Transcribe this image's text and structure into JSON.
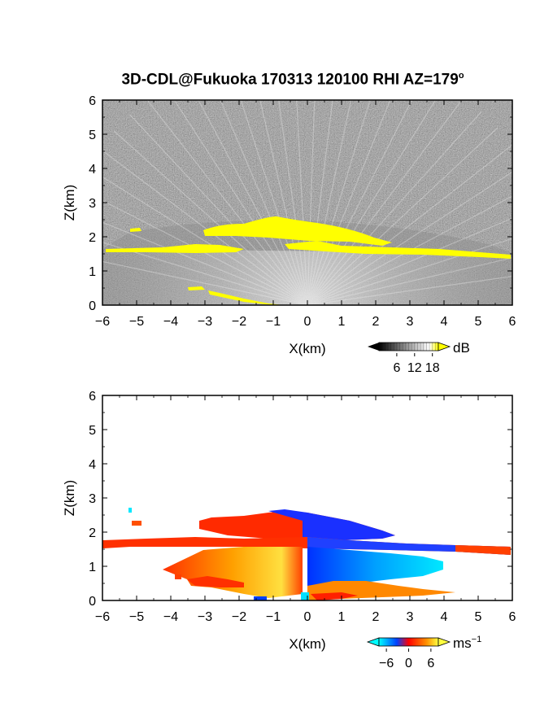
{
  "figure": {
    "title_main": "3D-CDL@Fukuoka 170313 120100 RHI AZ=179",
    "title_degree": "o"
  },
  "chart_data": [
    {
      "type": "heatmap",
      "name": "backscatter-intensity",
      "xlabel": "X(km)",
      "ylabel": "Z(km)",
      "xlim": [
        -6,
        6
      ],
      "ylim": [
        0,
        6
      ],
      "x_ticks": [
        -6,
        -5,
        -4,
        -3,
        -2,
        -1,
        0,
        1,
        2,
        3,
        4,
        5,
        6
      ],
      "y_ticks": [
        0,
        1,
        2,
        3,
        4,
        5,
        6
      ],
      "colorbar": {
        "unit": "dB",
        "tick_values": [
          6,
          12,
          18
        ],
        "range": [
          0,
          20
        ],
        "colors": [
          "#000000",
          "#808080",
          "#ffffff",
          "#ffff00"
        ]
      },
      "features": [
        {
          "label": "cloud layer",
          "x_range": [
            -2.9,
            2.6
          ],
          "z_range": [
            2.0,
            2.6
          ],
          "level": "above 18 dB"
        },
        {
          "label": "aerosol layer top",
          "x_range": [
            -6,
            6
          ],
          "z_range": [
            1.4,
            1.8
          ],
          "level": "above 18 dB"
        },
        {
          "label": "surface layer",
          "x_range": [
            -3.5,
            -1.0
          ],
          "z_range": [
            0.0,
            0.5
          ],
          "level": "above 18 dB"
        }
      ]
    },
    {
      "type": "heatmap",
      "name": "doppler-velocity",
      "xlabel": "X(km)",
      "ylabel": "Z(km)",
      "xlim": [
        -6,
        6
      ],
      "ylim": [
        0,
        6
      ],
      "x_ticks": [
        -6,
        -5,
        -4,
        -3,
        -2,
        -1,
        0,
        1,
        2,
        3,
        4,
        5,
        6
      ],
      "y_ticks": [
        0,
        1,
        2,
        3,
        4,
        5,
        6
      ],
      "colorbar": {
        "unit": "ms",
        "unit_exponent": "−1",
        "tick_labels": [
          "−6",
          "0",
          "6"
        ],
        "range": [
          -8,
          8
        ],
        "colors": [
          "#00ffff",
          "#0050ff",
          "#ff2000",
          "#ffff40"
        ]
      },
      "features": [
        {
          "label": "positive velocity region",
          "x_range": [
            -6,
            0
          ],
          "z_range": [
            0,
            2.5
          ],
          "value_ms": 5
        },
        {
          "label": "negative velocity region",
          "x_range": [
            0,
            6
          ],
          "z_range": [
            0.1,
            2.7
          ],
          "value_ms": -5
        }
      ]
    }
  ]
}
